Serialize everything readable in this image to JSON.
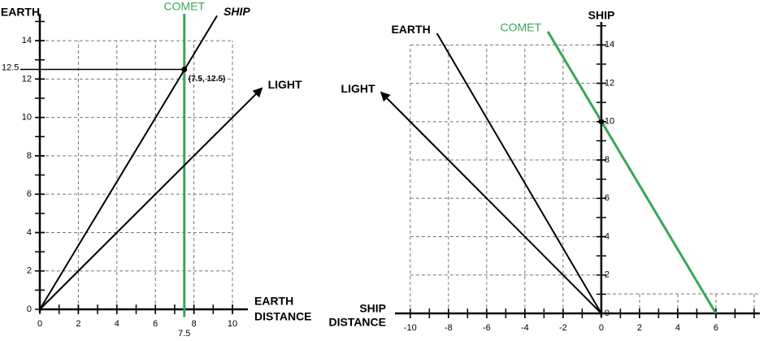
{
  "chart_data": [
    {
      "type": "line",
      "y_label": "EARTH",
      "x_label": [
        "EARTH",
        "DISTANCE"
      ],
      "xlim": [
        0,
        10.8
      ],
      "ylim": [
        0,
        15.4
      ],
      "xticks": [
        0,
        2,
        4,
        6,
        8,
        10
      ],
      "yticks": [
        0,
        2,
        4,
        6,
        8,
        10,
        12,
        14
      ],
      "grid": true,
      "series": [
        {
          "name": "COMET",
          "color": "#3aa655",
          "x": [
            7.5,
            7.5
          ],
          "values": [
            -0.4,
            15.4
          ]
        },
        {
          "name": "SHIP",
          "color": "#000000",
          "x": [
            0,
            9.2
          ],
          "values": [
            0,
            15.3
          ]
        },
        {
          "name": "LIGHT",
          "color": "#000000",
          "x": [
            0,
            11.5
          ],
          "values": [
            0,
            11.5
          ],
          "arrow": true
        }
      ],
      "point": {
        "x": 7.5,
        "y": 12.5,
        "label": "(7.5, 12.5)"
      }
    },
    {
      "type": "line",
      "y_label": "SHIP",
      "x_label": [
        "SHIP",
        "DISTANCE"
      ],
      "xlim": [
        -10.8,
        8.3
      ],
      "ylim": [
        0,
        15.2
      ],
      "xticks": [
        -10,
        -8,
        -6,
        -4,
        -2,
        0,
        2,
        4,
        6
      ],
      "yticks": [
        0,
        2,
        4,
        6,
        8,
        10,
        12,
        14
      ],
      "grid": true,
      "series": [
        {
          "name": "COMET",
          "color": "#3aa655",
          "x": [
            6,
            -2.8
          ],
          "values": [
            0,
            14.7
          ]
        },
        {
          "name": "EARTH",
          "color": "#000000",
          "x": [
            0,
            -8.6
          ],
          "values": [
            0,
            14.6
          ]
        },
        {
          "name": "LIGHT",
          "color": "#000000",
          "x": [
            0,
            -11.5
          ],
          "values": [
            0,
            11.5
          ],
          "arrow": true
        }
      ],
      "point": {
        "x": 0,
        "y": 10
      }
    }
  ]
}
